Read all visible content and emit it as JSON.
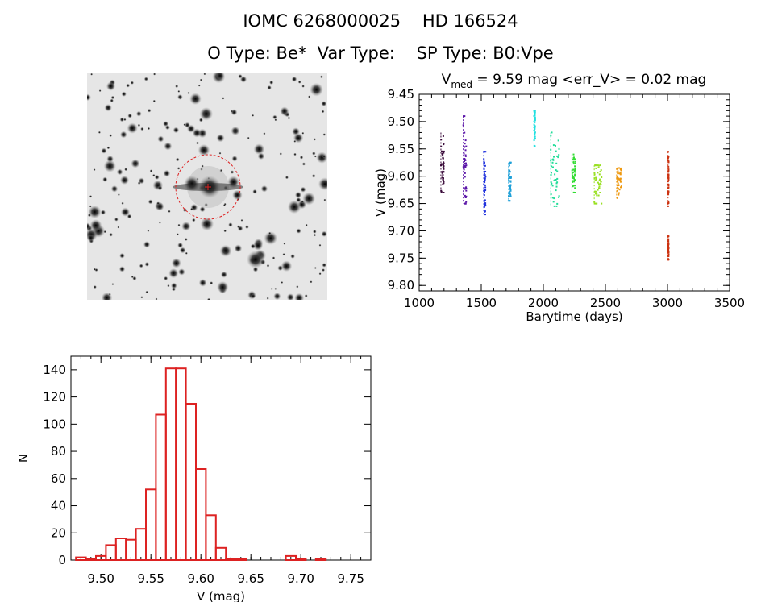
{
  "header": {
    "title_line1": "IOMC 6268000025    HD 166524",
    "title_line2": "O Type: Be*  Var Type:    SP Type: B0:Vpe"
  },
  "colors": {
    "histogram": "#dd2222",
    "field_marker": "#dd2222"
  },
  "chart_data": [
    {
      "type": "image",
      "description_label": "star-field-thumbnail",
      "annotations": [
        "target-circle"
      ]
    },
    {
      "type": "scatter",
      "title_main": "V",
      "title_sub": "med",
      "title_rest": " = 9.59 mag <err_V> = 0.02 mag",
      "xlabel": "Barytime (days)",
      "ylabel": "V (mag)",
      "xlim": [
        1000,
        3500
      ],
      "ylim": [
        9.81,
        9.45
      ],
      "y_inverted": true,
      "x_ticks": [
        1000,
        1500,
        2000,
        2500,
        3000,
        3500
      ],
      "y_ticks": [
        "9.45",
        "9.50",
        "9.55",
        "9.60",
        "9.65",
        "9.70",
        "9.75",
        "9.80"
      ],
      "groups": [
        {
          "x": [
            1175,
            1200
          ],
          "ymin": 9.52,
          "ymax": 9.63,
          "center": 9.585,
          "color": "#3a0b3a"
        },
        {
          "x": [
            1355,
            1380
          ],
          "ymin": 9.49,
          "ymax": 9.65,
          "center": 9.59,
          "color": "#5b16a8"
        },
        {
          "x": [
            1520,
            1535
          ],
          "ymin": 9.555,
          "ymax": 9.67,
          "center": 9.615,
          "color": "#2233dd"
        },
        {
          "x": [
            1720,
            1740
          ],
          "ymin": 9.575,
          "ymax": 9.645,
          "center": 9.61,
          "color": "#1ea0d8"
        },
        {
          "x": [
            1925,
            1935
          ],
          "ymin": 9.48,
          "ymax": 9.545,
          "center": 9.505,
          "color": "#22e0e0"
        },
        {
          "x": [
            2060,
            2130
          ],
          "ymin": 9.52,
          "ymax": 9.655,
          "center": 9.585,
          "color": "#22dd99"
        },
        {
          "x": [
            2230,
            2260
          ],
          "ymin": 9.56,
          "ymax": 9.63,
          "center": 9.595,
          "color": "#33dd33"
        },
        {
          "x": [
            2410,
            2470
          ],
          "ymin": 9.58,
          "ymax": 9.65,
          "center": 9.61,
          "color": "#99e022"
        },
        {
          "x": [
            2590,
            2630
          ],
          "ymin": 9.585,
          "ymax": 9.64,
          "center": 9.605,
          "color": "#ee9911"
        },
        {
          "x": [
            3005,
            3010
          ],
          "ymin": 9.555,
          "ymax": 9.655,
          "center": 9.6,
          "color": "#cc3311"
        },
        {
          "x": [
            3005,
            3010
          ],
          "ymin": 9.71,
          "ymax": 9.755,
          "center": 9.73,
          "color": "#cc3311"
        }
      ]
    },
    {
      "type": "bar",
      "xlabel": "V (mag)",
      "ylabel": "N",
      "xlim": [
        9.47,
        9.77
      ],
      "ylim": [
        0,
        150
      ],
      "x_ticks": [
        "9.50",
        "9.55",
        "9.60",
        "9.65",
        "9.70",
        "9.75"
      ],
      "y_ticks": [
        "0",
        "20",
        "40",
        "60",
        "80",
        "100",
        "120",
        "140"
      ],
      "bin_width": 0.01,
      "bins": [
        {
          "center": 9.48,
          "count": 2
        },
        {
          "center": 9.49,
          "count": 1
        },
        {
          "center": 9.5,
          "count": 3
        },
        {
          "center": 9.51,
          "count": 11
        },
        {
          "center": 9.52,
          "count": 16
        },
        {
          "center": 9.53,
          "count": 15
        },
        {
          "center": 9.54,
          "count": 23
        },
        {
          "center": 9.55,
          "count": 52
        },
        {
          "center": 9.56,
          "count": 107
        },
        {
          "center": 9.57,
          "count": 141
        },
        {
          "center": 9.58,
          "count": 141
        },
        {
          "center": 9.59,
          "count": 115
        },
        {
          "center": 9.6,
          "count": 67
        },
        {
          "center": 9.61,
          "count": 33
        },
        {
          "center": 9.62,
          "count": 9
        },
        {
          "center": 9.63,
          "count": 1
        },
        {
          "center": 9.64,
          "count": 1
        },
        {
          "center": 9.65,
          "count": 0
        },
        {
          "center": 9.66,
          "count": 0
        },
        {
          "center": 9.67,
          "count": 0
        },
        {
          "center": 9.68,
          "count": 0
        },
        {
          "center": 9.69,
          "count": 3
        },
        {
          "center": 9.7,
          "count": 1
        },
        {
          "center": 9.71,
          "count": 0
        },
        {
          "center": 9.72,
          "count": 1
        }
      ]
    }
  ]
}
